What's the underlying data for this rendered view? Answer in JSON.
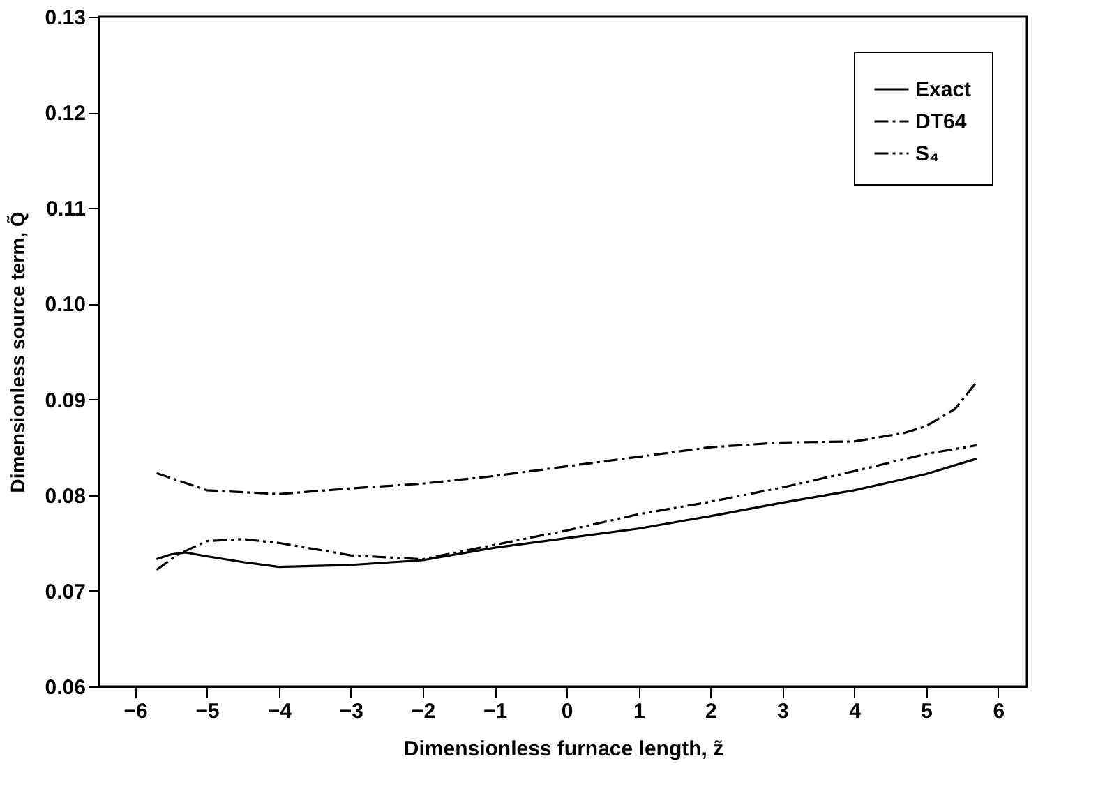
{
  "chart_data": {
    "type": "line",
    "xlabel": "Dimensionless furnace length, z̃",
    "ylabel": "Dimensionless source term, Q̃",
    "xlim": [
      -6.5,
      6.4
    ],
    "ylim": [
      0.06,
      0.13
    ],
    "xticks": [
      -6,
      -5,
      -4,
      -3,
      -2,
      -1,
      0,
      1,
      2,
      3,
      4,
      5,
      6
    ],
    "yticks": [
      0.06,
      0.07,
      0.08,
      0.09,
      {
        "value": 0.1,
        "label": "0.10"
      },
      0.11,
      0.12,
      0.13
    ],
    "grid": false,
    "legend": "top right",
    "marker": "none",
    "series": [
      {
        "name": "Exact",
        "color": "#000000",
        "line_style": "solid",
        "x": [
          -5.7,
          -5.5,
          -5.3,
          -5.0,
          -4.5,
          -4,
          -3,
          -2,
          -1,
          0,
          1,
          2,
          3,
          4,
          5,
          5.7
        ],
        "values": [
          0.0733,
          0.0738,
          0.074,
          0.0736,
          0.073,
          0.0725,
          0.0727,
          0.0732,
          0.0745,
          0.0755,
          0.0765,
          0.0778,
          0.0792,
          0.0805,
          0.0822,
          0.0838
        ]
      },
      {
        "name": "DT64",
        "color": "#000000",
        "line_style": "dashed",
        "x": [
          -5.7,
          -5,
          -4,
          -3,
          -2,
          -1,
          0,
          1,
          2,
          3,
          4,
          4.7,
          5,
          5.4,
          5.7
        ],
        "values": [
          0.0823,
          0.0805,
          0.0801,
          0.0807,
          0.0812,
          0.082,
          0.083,
          0.084,
          0.085,
          0.0855,
          0.0856,
          0.0865,
          0.0872,
          0.089,
          0.0918
        ]
      },
      {
        "name": "S₄",
        "color": "#000000",
        "line_style": "dotted",
        "x": [
          -5.7,
          -5.4,
          -5,
          -4.5,
          -4,
          -3,
          -2,
          -1,
          0,
          1,
          2,
          3,
          4,
          5,
          5.7
        ],
        "values": [
          0.0722,
          0.0738,
          0.0752,
          0.0754,
          0.075,
          0.0737,
          0.0733,
          0.0748,
          0.0763,
          0.078,
          0.0793,
          0.0808,
          0.0825,
          0.0843,
          0.0852
        ]
      }
    ]
  }
}
